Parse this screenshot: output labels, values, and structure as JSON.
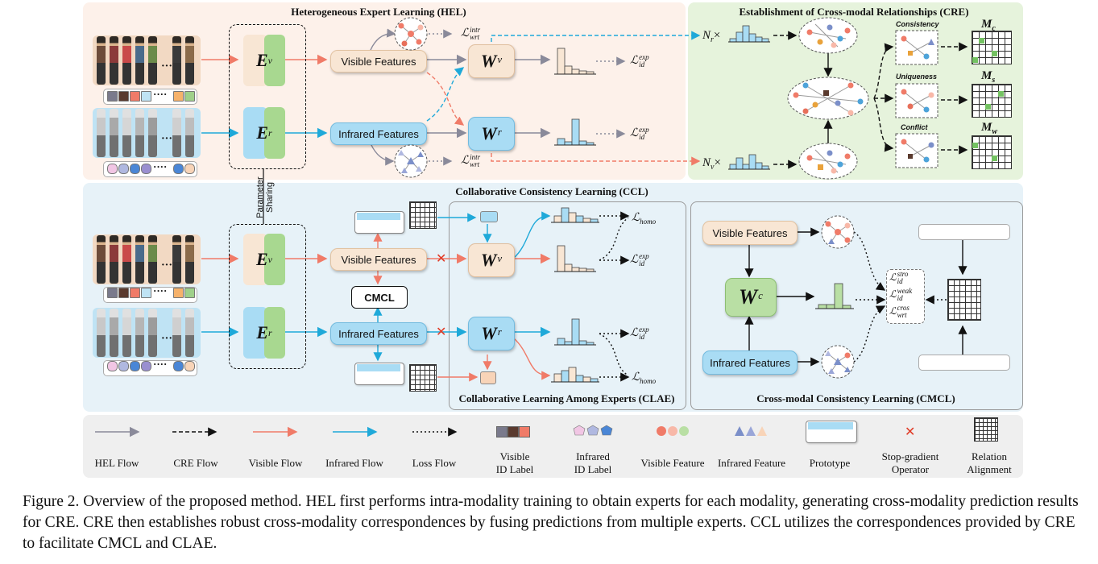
{
  "panels": {
    "hel_title": "Heterogeneous Expert Learning (HEL)",
    "cre_title": "Establishment of Cross-modal Relationships (CRE)",
    "ccl_title": "Collaborative Consistency Learning (CCL)",
    "clae_title": "Collaborative Learning Among Experts (CLAE)",
    "cmcl_title": "Cross-modal Consistency Learning (CMCL)"
  },
  "features": {
    "visible": "Visible Features",
    "infrared": "Infrared Features"
  },
  "cmcl_box": "CMCL",
  "parameter_sharing": [
    "Parameter",
    "Sharing"
  ],
  "cre": {
    "consistency": "Consistency",
    "uniqueness": "Uniqueness",
    "conflict": "Conflict",
    "nr": "N",
    "nr_sub": "r",
    "nv": "N",
    "nv_sub": "v",
    "times": "×",
    "mc": "M",
    "mc_sub": "c",
    "ms": "M",
    "ms_sub": "s",
    "mw": "M",
    "mw_sub": "w"
  },
  "losses": {
    "L": "ℒ",
    "wrt": "wrt",
    "intr": "intr",
    "id": "id",
    "exp": "exp",
    "homo": "homo",
    "stro": "stro",
    "weak": "weak",
    "cros": "cros"
  },
  "experts": {
    "Ev_base": "E",
    "Ev_sup": "v",
    "Er_base": "E",
    "Er_sup": "r",
    "Wv_base": "W",
    "Wv_sup": "v",
    "Wr_base": "W",
    "Wr_sup": "r",
    "Wc_base": "W",
    "Wc_sup": "c"
  },
  "legend": [
    {
      "label": "HEL Flow"
    },
    {
      "label": "CRE Flow"
    },
    {
      "label": "Visible Flow"
    },
    {
      "label": "Infrared Flow"
    },
    {
      "label": "Loss Flow"
    },
    {
      "label": "Visible\nID Label"
    },
    {
      "label": "Infrared\nID Label"
    },
    {
      "label": "Visible Feature"
    },
    {
      "label": "Infrared Feature"
    },
    {
      "label": "Prototype"
    },
    {
      "label": "Stop-gradient\nOperator"
    },
    {
      "label": "Relation\nAlignment"
    }
  ],
  "caption": "Figure 2. Overview of the proposed method. HEL first performs intra-modality training to obtain experts for each modality, generating cross-modality prediction results for CRE. CRE then establishes robust cross-modality correspondences by fusing predictions from multiple experts. CCL utilizes the correspondences provided by CRE to facilitate CMCL and CLAE.",
  "colors": {
    "hel_bg": "#fdf1ea",
    "cre_bg": "#e6f3dc",
    "ccl_bg": "#e7f2f8",
    "visible_flow": "#f07b68",
    "infrared_flow": "#1fa9d9",
    "hel_flow": "#8a8a9a",
    "stop_gradient": "#e03a25",
    "visible_feature": "#f8e6d4",
    "infrared_feature": "#a9dcf4",
    "common_expert": "#b9dfa4"
  }
}
